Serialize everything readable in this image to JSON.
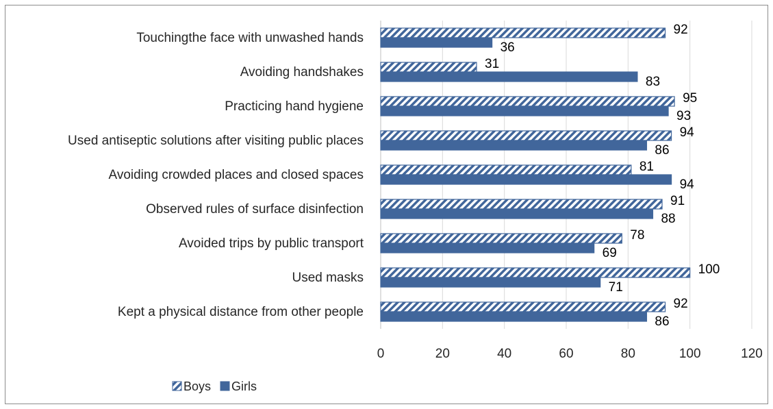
{
  "chart_data": {
    "type": "bar",
    "orientation": "horizontal",
    "categories": [
      "Touchingthe face with unwashed hands",
      "Avoiding handshakes",
      "Practicing hand hygiene",
      "Used antiseptic solutions after visiting public places",
      "Avoiding crowded places and closed spaces",
      "Observed rules of surface disinfection",
      "Avoided trips by public transport",
      "Used masks",
      "Kept a physical distance from other people"
    ],
    "series": [
      {
        "name": "Boys",
        "values": [
          92,
          31,
          95,
          94,
          81,
          91,
          78,
          100,
          92
        ],
        "pattern": "diagonal-hatch",
        "color": "#41669b"
      },
      {
        "name": "Girls",
        "values": [
          36,
          83,
          93,
          86,
          94,
          88,
          69,
          71,
          86
        ],
        "pattern": "solid",
        "color": "#41669b"
      }
    ],
    "xlim": [
      0,
      120
    ],
    "xticks": [
      0,
      20,
      40,
      60,
      80,
      100,
      120
    ],
    "grid": "vertical",
    "legend": "bottom-left",
    "title": "",
    "xlabel": "",
    "ylabel": ""
  }
}
